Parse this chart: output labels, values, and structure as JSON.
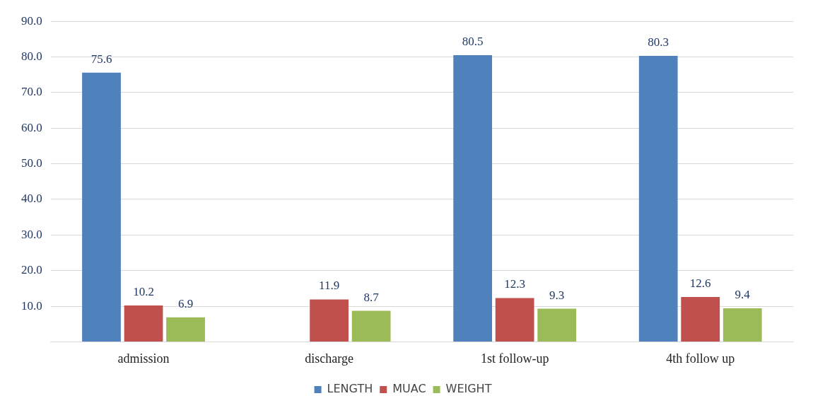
{
  "chart_data": {
    "type": "bar",
    "categories": [
      "admission",
      "discharge",
      "1st follow-up",
      "4th follow up"
    ],
    "series": [
      {
        "name": "LENGTH",
        "color": "#4f81bd",
        "values": [
          75.6,
          null,
          80.5,
          80.3
        ]
      },
      {
        "name": "MUAC",
        "color": "#c0504d",
        "values": [
          10.2,
          11.9,
          12.3,
          12.6
        ]
      },
      {
        "name": "WEIGHT",
        "color": "#9bbb59",
        "values": [
          6.9,
          8.7,
          9.3,
          9.4
        ]
      }
    ],
    "ylim": [
      0,
      90
    ],
    "yticks": [
      {
        "value": 0,
        "label": null
      },
      {
        "value": 10,
        "label": "10.0"
      },
      {
        "value": 20,
        "label": "20.0"
      },
      {
        "value": 30,
        "label": "30.0"
      },
      {
        "value": 40,
        "label": "40.0"
      },
      {
        "value": 50,
        "label": "50.0"
      },
      {
        "value": 60,
        "label": "60.0"
      },
      {
        "value": 70,
        "label": "70.0"
      },
      {
        "value": 80,
        "label": "80.0"
      },
      {
        "value": 90,
        "label": "90.0"
      }
    ],
    "grid": "y",
    "legend": "bottom",
    "data_labels": true
  }
}
